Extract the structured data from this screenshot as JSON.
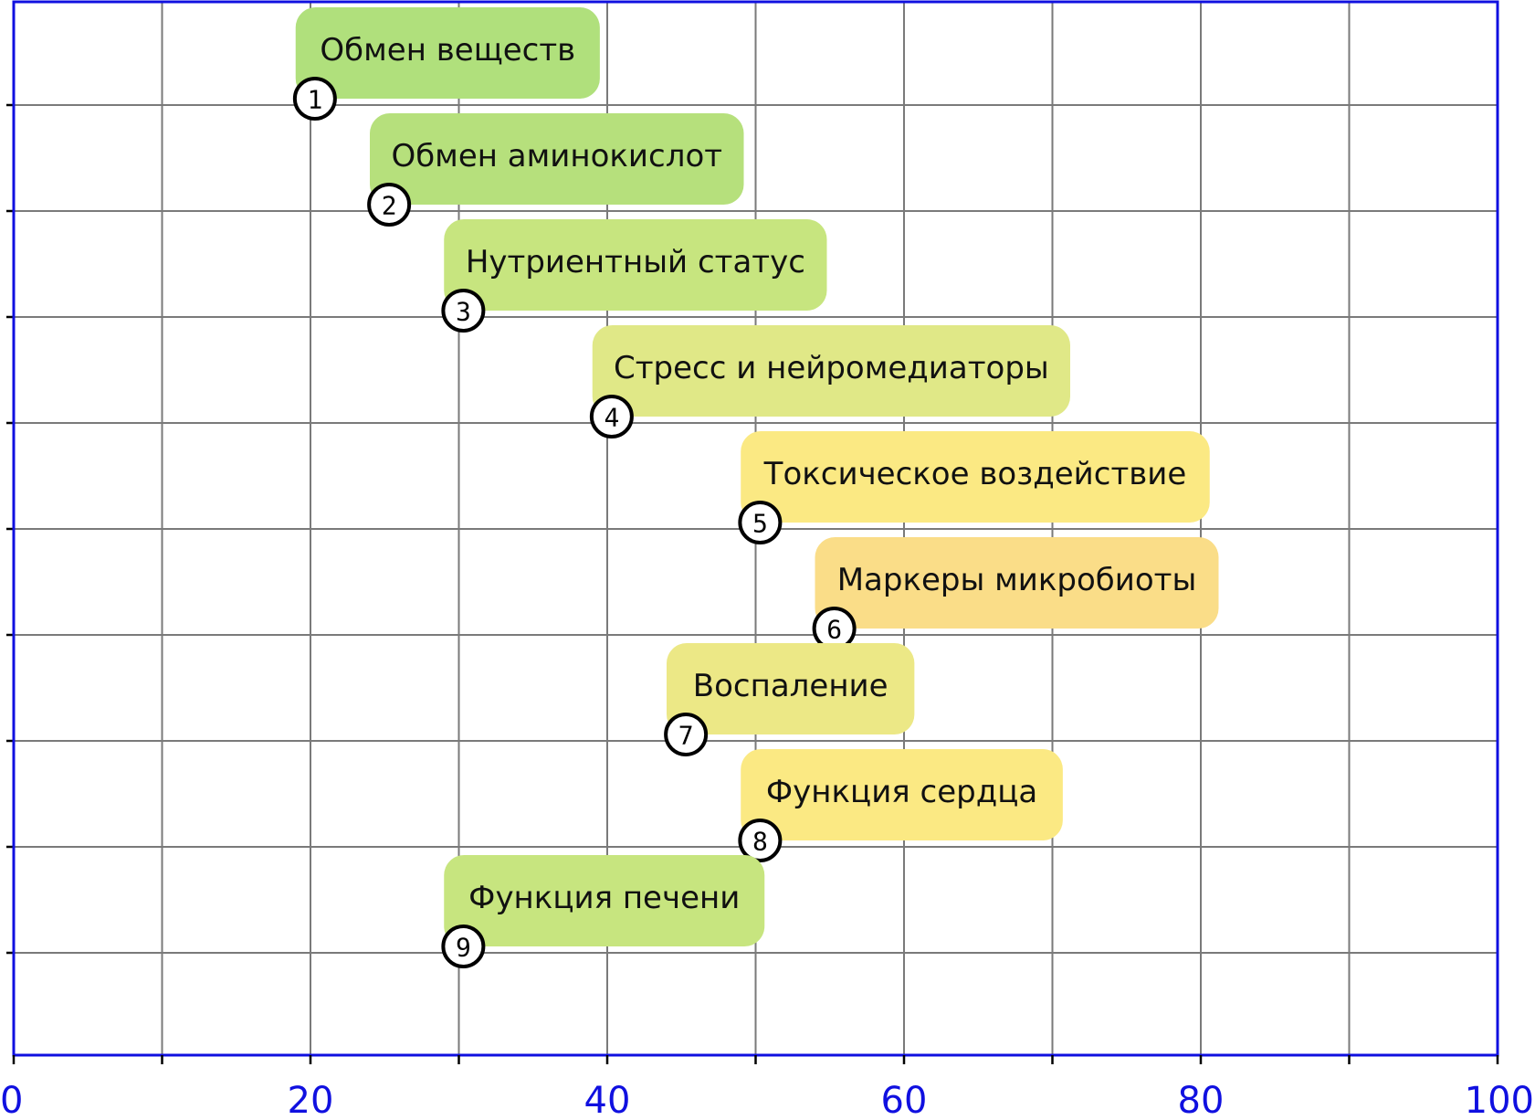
{
  "chart_data": {
    "type": "bar",
    "orientation": "horizontal-floating",
    "title": "",
    "xlabel": "",
    "ylabel": "",
    "xlim": [
      0,
      100
    ],
    "x_ticks": [
      0,
      20,
      40,
      60,
      80,
      100
    ],
    "grid": true,
    "items": [
      {
        "id": "1",
        "label": "Обмен веществ",
        "start": 19,
        "end": 39.5,
        "color": "#b0e07c"
      },
      {
        "id": "2",
        "label": "Обмен аминокислот",
        "start": 24,
        "end": 49.2,
        "color": "#b6e07c"
      },
      {
        "id": "3",
        "label": "Нутриентный статус",
        "start": 29,
        "end": 54.8,
        "color": "#c7e57f"
      },
      {
        "id": "4",
        "label": "Стресс и нейромедиаторы",
        "start": 39,
        "end": 71.2,
        "color": "#e0e887"
      },
      {
        "id": "5",
        "label": "Токсическое воздействие",
        "start": 49,
        "end": 80.6,
        "color": "#fbe983"
      },
      {
        "id": "6",
        "label": "Маркеры микробиоты",
        "start": 54,
        "end": 81.2,
        "color": "#fadd88"
      },
      {
        "id": "7",
        "label": "Воспаление",
        "start": 44,
        "end": 60.7,
        "color": "#ece886"
      },
      {
        "id": "8",
        "label": "Функция сердца",
        "start": 49,
        "end": 70.7,
        "color": "#fbe983"
      },
      {
        "id": "9",
        "label": "Функция печени",
        "start": 29,
        "end": 50.6,
        "color": "#c7e57f"
      }
    ]
  }
}
